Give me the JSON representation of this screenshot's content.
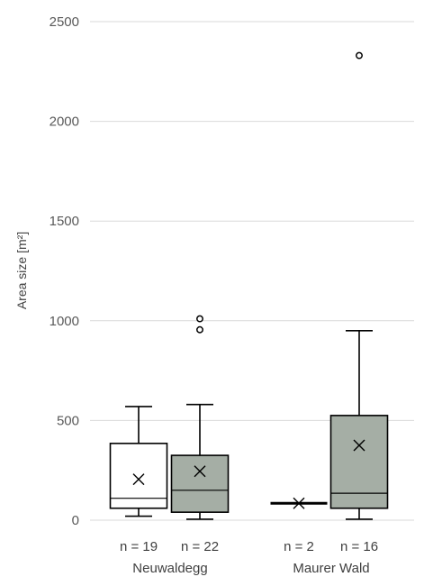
{
  "chart_data": {
    "type": "boxplot",
    "ylabel": "Area size [m²]",
    "ylim": [
      0,
      2500
    ],
    "yticks": [
      "0",
      "500",
      "1000",
      "1500",
      "2000",
      "2500"
    ],
    "ytick_values": [
      0,
      500,
      1000,
      1500,
      2000,
      2500
    ],
    "grid": true,
    "groups": [
      "Neuwaldegg",
      "Maurer Wald"
    ],
    "boxes": [
      {
        "group": 0,
        "n_label": "n = 19",
        "fill": "#ffffff",
        "whisker_low": 20,
        "q1": 60,
        "median": 110,
        "q3": 385,
        "whisker_high": 570,
        "mean": 205,
        "outliers": []
      },
      {
        "group": 0,
        "n_label": "n = 22",
        "fill": "#a5aea5",
        "whisker_low": 5,
        "q1": 40,
        "median": 150,
        "q3": 325,
        "whisker_high": 580,
        "mean": 245,
        "outliers": [
          955,
          1010
        ]
      },
      {
        "group": 1,
        "n_label": "n = 2",
        "fill": "#ffffff",
        "whisker_low": 85,
        "q1": 85,
        "median": 85,
        "q3": 85,
        "whisker_high": 85,
        "mean": 85,
        "outliers": []
      },
      {
        "group": 1,
        "n_label": "n = 16",
        "fill": "#a5aea5",
        "whisker_low": 5,
        "q1": 60,
        "median": 135,
        "q3": 525,
        "whisker_high": 950,
        "mean": 375,
        "outliers": [
          2330
        ]
      }
    ]
  }
}
